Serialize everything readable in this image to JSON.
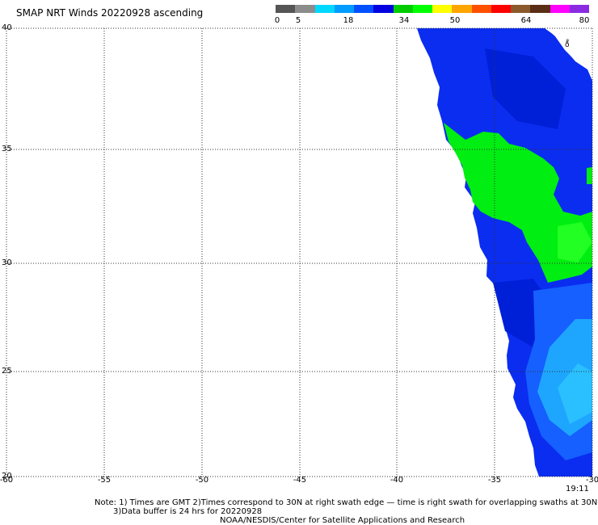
{
  "title": "SMAP NRT Winds 20220928 ascending",
  "colorbar": {
    "labels": [
      "0",
      "5",
      "18",
      "34",
      "50",
      "64",
      "80"
    ],
    "segments": [
      "#555555",
      "#8c8c8c",
      "#00d8ff",
      "#009cff",
      "#0050ff",
      "#0000e0",
      "#00cc00",
      "#00ff00",
      "#ffff00",
      "#ffa500",
      "#ff5000",
      "#ff0000",
      "#8b5a2b",
      "#5a2e14",
      "#ff00ff",
      "#8a2be2"
    ]
  },
  "axes": {
    "x_ticks": [
      "-60",
      "-55",
      "-50",
      "-45",
      "-40",
      "-35",
      "-30"
    ],
    "y_ticks": [
      "40",
      "35",
      "30",
      "25",
      "20"
    ]
  },
  "colors": {
    "background": "#ffffff",
    "blue": "#0033ee",
    "light_blue": "#1ea0ff",
    "green": "#00ee11",
    "grid": "#333333"
  },
  "time_label": "19:11",
  "notes": {
    "line1": "Note: 1) Times are GMT 2)Times correspond to 30N at right swath edge — time is right swath for overlapping swaths at 30N",
    "line2": "3)Data buffer is 24 hrs for 20220928",
    "line3": "NOAA/NESDIS/Center for Satellite Applications and Research"
  }
}
